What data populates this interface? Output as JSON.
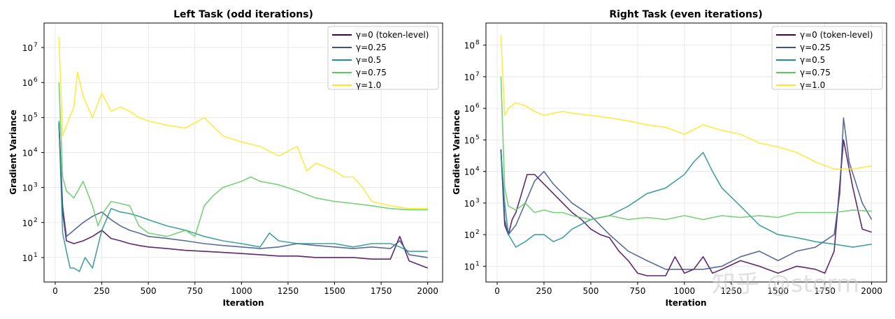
{
  "watermark": "知乎 @storm",
  "chart_data": [
    {
      "type": "line",
      "title": "Left Task (odd iterations)",
      "xlabel": "Iteration",
      "ylabel": "Gradient Variance",
      "yscale": "log",
      "xlim": [
        -60,
        2080
      ],
      "ylim_exp": [
        0.3,
        7.7
      ],
      "xticks": [
        0,
        250,
        500,
        750,
        1000,
        1250,
        1500,
        1750,
        2000
      ],
      "xtick_labels": [
        "0",
        "250",
        "500",
        "750",
        "1000",
        "1250",
        "1500",
        "1750",
        "2000"
      ],
      "yticks_exp": [
        1,
        2,
        3,
        4,
        5,
        6,
        7
      ],
      "ytick_labels": [
        "10",
        "10",
        "10",
        "10",
        "10",
        "10",
        "10"
      ],
      "ytick_sups": [
        "1",
        "2",
        "3",
        "4",
        "5",
        "6",
        "7"
      ],
      "grid": true,
      "legend": "top-right",
      "series": [
        {
          "name": "γ=0 (token-level)",
          "color": "#440154",
          "x": [
            20,
            40,
            60,
            100,
            150,
            200,
            250,
            300,
            350,
            400,
            450,
            500,
            600,
            700,
            800,
            900,
            1000,
            1100,
            1200,
            1300,
            1400,
            1500,
            1600,
            1700,
            1800,
            1850,
            1900,
            2000
          ],
          "y": [
            70000,
            200,
            30,
            25,
            30,
            40,
            60,
            35,
            30,
            25,
            22,
            20,
            18,
            16,
            15,
            14,
            13,
            12,
            11,
            11,
            10,
            10,
            10,
            9,
            9,
            40,
            8,
            5
          ]
        },
        {
          "name": "γ=0.25",
          "color": "#3b528b",
          "x": [
            20,
            40,
            60,
            100,
            150,
            200,
            250,
            300,
            350,
            400,
            450,
            500,
            600,
            700,
            800,
            900,
            1000,
            1100,
            1200,
            1300,
            1400,
            1500,
            1600,
            1700,
            1800,
            1850,
            1900,
            2000
          ],
          "y": [
            60000,
            300,
            40,
            60,
            100,
            150,
            200,
            120,
            80,
            60,
            50,
            40,
            35,
            30,
            25,
            22,
            20,
            18,
            20,
            25,
            22,
            20,
            18,
            20,
            18,
            30,
            12,
            10
          ]
        },
        {
          "name": "γ=0.5",
          "color": "#21908d",
          "x": [
            20,
            40,
            60,
            80,
            100,
            130,
            160,
            200,
            250,
            300,
            350,
            400,
            450,
            500,
            600,
            700,
            800,
            900,
            1000,
            1100,
            1150,
            1200,
            1300,
            1400,
            1500,
            1600,
            1700,
            1800,
            1850,
            1900,
            2000
          ],
          "y": [
            80000,
            50,
            15,
            5,
            5,
            4,
            10,
            5,
            60,
            250,
            200,
            180,
            150,
            120,
            80,
            60,
            40,
            30,
            25,
            20,
            50,
            30,
            25,
            25,
            25,
            20,
            25,
            25,
            20,
            15,
            15
          ]
        },
        {
          "name": "γ=0.75",
          "color": "#5ec962",
          "x": [
            20,
            40,
            60,
            100,
            150,
            200,
            230,
            260,
            300,
            350,
            400,
            450,
            500,
            600,
            700,
            750,
            800,
            850,
            900,
            1000,
            1050,
            1100,
            1200,
            1300,
            1400,
            1500,
            1600,
            1700,
            1800,
            1900,
            2000
          ],
          "y": [
            1000000,
            2000,
            800,
            500,
            1500,
            300,
            80,
            200,
            400,
            350,
            300,
            80,
            50,
            40,
            60,
            40,
            300,
            600,
            1000,
            1500,
            2000,
            1500,
            1200,
            800,
            500,
            400,
            350,
            300,
            250,
            230,
            230
          ]
        },
        {
          "name": "γ=1.0",
          "color": "#fde725",
          "x": [
            20,
            40,
            60,
            100,
            120,
            150,
            200,
            250,
            300,
            350,
            400,
            450,
            500,
            600,
            700,
            800,
            900,
            1000,
            1100,
            1200,
            1300,
            1350,
            1400,
            1500,
            1550,
            1600,
            1650,
            1700,
            1800,
            1900,
            2000
          ],
          "y": [
            20000000,
            30000,
            60000,
            200000,
            2000000,
            400000,
            100000,
            500000,
            150000,
            200000,
            150000,
            100000,
            80000,
            60000,
            50000,
            100000,
            30000,
            20000,
            15000,
            8000,
            15000,
            3000,
            5000,
            3000,
            2000,
            2000,
            1000,
            400,
            300,
            250,
            250
          ]
        }
      ]
    },
    {
      "type": "line",
      "title": "Right Task (even iterations)",
      "xlabel": "Iteration",
      "ylabel": "Gradient Variance",
      "yscale": "log",
      "xlim": [
        -60,
        2080
      ],
      "ylim_exp": [
        0.5,
        8.7
      ],
      "xticks": [
        0,
        250,
        500,
        750,
        1000,
        1250,
        1500,
        1750,
        2000
      ],
      "xtick_labels": [
        "0",
        "250",
        "500",
        "750",
        "1000",
        "1250",
        "1500",
        "1750",
        "2000"
      ],
      "yticks_exp": [
        1,
        2,
        3,
        4,
        5,
        6,
        7,
        8
      ],
      "ytick_labels": [
        "10",
        "10",
        "10",
        "10",
        "10",
        "10",
        "10",
        "10"
      ],
      "ytick_sups": [
        "1",
        "2",
        "3",
        "4",
        "5",
        "6",
        "7",
        "8"
      ],
      "grid": true,
      "legend": "top-right",
      "series": [
        {
          "name": "γ=0 (token-level)",
          "color": "#440154",
          "x": [
            20,
            40,
            60,
            80,
            100,
            130,
            160,
            200,
            250,
            300,
            350,
            400,
            450,
            500,
            550,
            600,
            650,
            700,
            750,
            800,
            850,
            900,
            950,
            1000,
            1050,
            1100,
            1150,
            1200,
            1300,
            1400,
            1500,
            1600,
            1700,
            1750,
            1800,
            1850,
            1900,
            1950,
            2000
          ],
          "y": [
            50000,
            200,
            100,
            300,
            500,
            2000,
            8000,
            8000,
            4000,
            2000,
            1000,
            500,
            300,
            150,
            100,
            80,
            30,
            15,
            6,
            5,
            5,
            5,
            20,
            6,
            8,
            20,
            6,
            8,
            15,
            10,
            6,
            10,
            8,
            6,
            30,
            100000,
            3000,
            150,
            120
          ]
        },
        {
          "name": "γ=0.25",
          "color": "#3b528b",
          "x": [
            20,
            40,
            60,
            100,
            150,
            200,
            250,
            300,
            400,
            500,
            600,
            700,
            800,
            900,
            1000,
            1100,
            1200,
            1300,
            1400,
            1500,
            1600,
            1700,
            1800,
            1830,
            1850,
            1880,
            1950,
            2000
          ],
          "y": [
            50000,
            300,
            100,
            200,
            1000,
            5000,
            10000,
            4000,
            1000,
            400,
            100,
            30,
            15,
            8,
            8,
            8,
            10,
            20,
            30,
            15,
            30,
            40,
            100,
            2000,
            500000,
            20000,
            1000,
            300
          ]
        },
        {
          "name": "γ=0.5",
          "color": "#21908d",
          "x": [
            20,
            40,
            60,
            100,
            150,
            200,
            250,
            300,
            350,
            400,
            500,
            600,
            700,
            800,
            900,
            1000,
            1050,
            1100,
            1150,
            1200,
            1300,
            1400,
            1500,
            1600,
            1700,
            1800,
            1900,
            2000
          ],
          "y": [
            40000,
            1000,
            100,
            40,
            60,
            100,
            100,
            60,
            80,
            150,
            300,
            400,
            800,
            2000,
            3000,
            8000,
            20000,
            40000,
            10000,
            3000,
            800,
            200,
            100,
            80,
            60,
            50,
            40,
            50
          ]
        },
        {
          "name": "γ=0.75",
          "color": "#5ec962",
          "x": [
            20,
            40,
            60,
            100,
            150,
            200,
            250,
            300,
            350,
            400,
            500,
            600,
            700,
            800,
            900,
            1000,
            1100,
            1200,
            1300,
            1400,
            1500,
            1600,
            1700,
            1800,
            1900,
            2000
          ],
          "y": [
            10000000,
            3000,
            800,
            600,
            1000,
            500,
            600,
            500,
            500,
            400,
            300,
            400,
            300,
            350,
            300,
            400,
            300,
            400,
            350,
            400,
            350,
            500,
            500,
            500,
            600,
            550
          ]
        },
        {
          "name": "γ=1.0",
          "color": "#fde725",
          "x": [
            20,
            40,
            60,
            100,
            150,
            200,
            250,
            300,
            350,
            400,
            500,
            600,
            700,
            800,
            900,
            1000,
            1100,
            1200,
            1300,
            1400,
            1500,
            1600,
            1700,
            1800,
            1900,
            2000
          ],
          "y": [
            200000000,
            600000,
            1000000,
            1500000,
            1200000,
            800000,
            600000,
            700000,
            800000,
            700000,
            600000,
            500000,
            400000,
            300000,
            250000,
            150000,
            300000,
            200000,
            150000,
            80000,
            60000,
            40000,
            20000,
            12000,
            12000,
            15000
          ]
        }
      ]
    }
  ]
}
